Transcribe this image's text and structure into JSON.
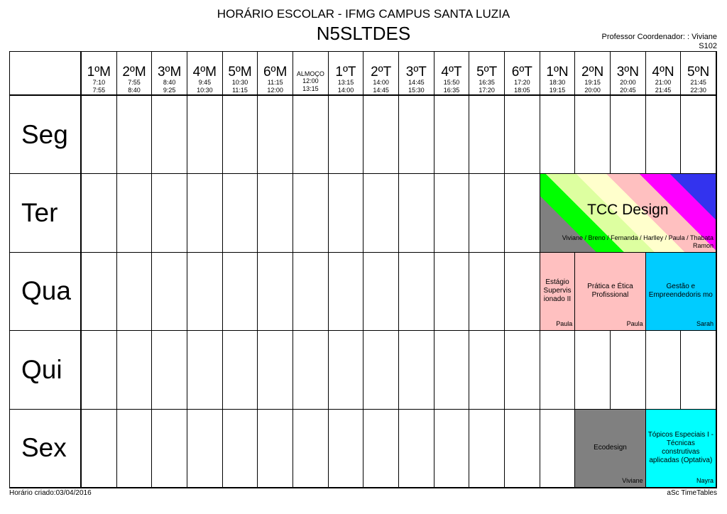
{
  "header": {
    "school": "HORÁRIO ESCOLAR - IFMG CAMPUS SANTA LUZIA",
    "class": "N5SLTDES",
    "coordinator": "Professor Coordenador: : Viviane",
    "room": "S102"
  },
  "periods": [
    {
      "name": "1ºM",
      "start": "7:10",
      "end": "7:55"
    },
    {
      "name": "2ºM",
      "start": "7:55",
      "end": "8:40"
    },
    {
      "name": "3ºM",
      "start": "8:40",
      "end": "9:25"
    },
    {
      "name": "4ºM",
      "start": "9:45",
      "end": "10:30"
    },
    {
      "name": "5ºM",
      "start": "10:30",
      "end": "11:15"
    },
    {
      "name": "6ºM",
      "start": "11:15",
      "end": "12:00"
    },
    {
      "name": "ALMOÇO",
      "start": "12:00",
      "end": "13:15"
    },
    {
      "name": "1ºT",
      "start": "13:15",
      "end": "14:00"
    },
    {
      "name": "2ºT",
      "start": "14:00",
      "end": "14:45"
    },
    {
      "name": "3ºT",
      "start": "14:45",
      "end": "15:30"
    },
    {
      "name": "4ºT",
      "start": "15:50",
      "end": "16:35"
    },
    {
      "name": "5ºT",
      "start": "16:35",
      "end": "17:20"
    },
    {
      "name": "6ºT",
      "start": "17:20",
      "end": "18:05"
    },
    {
      "name": "1ºN",
      "start": "18:30",
      "end": "19:15"
    },
    {
      "name": "2ºN",
      "start": "19:15",
      "end": "20:00"
    },
    {
      "name": "3ºN",
      "start": "20:00",
      "end": "20:45"
    },
    {
      "name": "4ºN",
      "start": "21:00",
      "end": "21:45"
    },
    {
      "name": "5ºN",
      "start": "21:45",
      "end": "22:30"
    }
  ],
  "days": [
    "Seg",
    "Ter",
    "Qua",
    "Qui",
    "Sex"
  ],
  "lessons": [
    {
      "day": 1,
      "start": 13,
      "span": 5,
      "subject": "TCC Design",
      "teacher": "Viviane / Breno / Fernanda / Harlley / Paula / Thabata\nRamon",
      "color": "striped",
      "cls": "tcc"
    },
    {
      "day": 2,
      "start": 13,
      "span": 1,
      "subject": "Estágio Supervis ionado II",
      "teacher": "Paula",
      "color": "#ffc0c0"
    },
    {
      "day": 2,
      "start": 14,
      "span": 2,
      "subject": "Prática e Ética Profissional",
      "teacher": "Paula",
      "color": "#ffc0c0"
    },
    {
      "day": 2,
      "start": 16,
      "span": 2,
      "subject": "Gestão e Empreendedoris mo",
      "teacher": "Sarah",
      "color": "#00ccff"
    },
    {
      "day": 4,
      "start": 14,
      "span": 2,
      "subject": "Ecodesign",
      "teacher": "Viviane",
      "color": "#808080"
    },
    {
      "day": 4,
      "start": 16,
      "span": 2,
      "subject": "Tópicos Especiais I - Técnicas construtivas aplicadas (Optativa)",
      "teacher": "Nayra",
      "color": "#00ffff"
    }
  ],
  "footer": {
    "created": "Horário criado:03/04/2016",
    "software": "aSc TimeTables"
  }
}
